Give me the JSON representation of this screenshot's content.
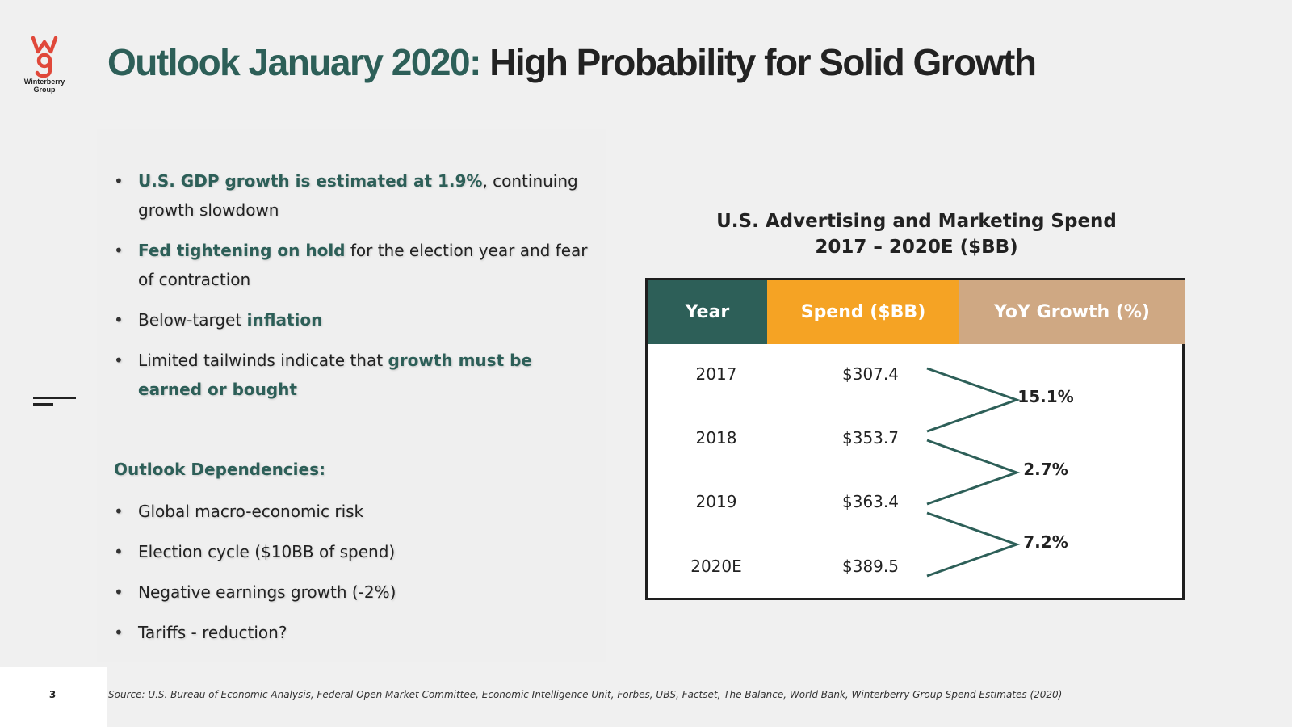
{
  "logo": {
    "mark": "wg",
    "name_line1": "Winterberry",
    "name_line2": "Group"
  },
  "title": {
    "part1": "Outlook January 2020:",
    "part2": "High Probability for Solid Growth"
  },
  "bullets": [
    {
      "bold": "U.S. GDP growth is estimated at 1.9%",
      "rest": ", continuing growth slowdown"
    },
    {
      "bold": "Fed tightening on hold",
      "rest": " for the election year and fear of contraction"
    },
    {
      "pre": "Below-target ",
      "bold": "inflation"
    },
    {
      "pre": "Limited tailwinds indicate that ",
      "bold": "growth must be earned or bought"
    }
  ],
  "dependencies": {
    "heading": "Outlook Dependencies:",
    "items": [
      "Global macro-economic risk",
      "Election cycle ($10BB of spend)",
      "Negative earnings growth (-2%)",
      "Tariffs - reduction?"
    ]
  },
  "chart": {
    "title_line1": "U.S. Advertising and Marketing Spend",
    "title_line2": "2017 – 2020E ($BB)",
    "headers": {
      "year": "Year",
      "spend": "Spend ($BB)",
      "growth": "YoY Growth (%)"
    },
    "colors": {
      "year": "#2d5f58",
      "spend": "#f5a324",
      "growth": "#cfa883",
      "arrow": "#2d5f58"
    }
  },
  "chart_data": {
    "type": "table",
    "title": "U.S. Advertising and Marketing Spend 2017 – 2020E ($BB)",
    "columns": [
      "Year",
      "Spend ($BB)",
      "YoY Growth (%)"
    ],
    "years": [
      "2017",
      "2018",
      "2019",
      "2020E"
    ],
    "spend_labels": [
      "$307.4",
      "$353.7",
      "$363.4",
      "$389.5"
    ],
    "spend_values": [
      307.4,
      353.7,
      363.4,
      389.5
    ],
    "growth_labels": [
      "15.1%",
      "2.7%",
      "7.2%"
    ],
    "growth_values": [
      15.1,
      2.7,
      7.2
    ]
  },
  "footer": {
    "source": "Source: U.S. Bureau of Economic Analysis, Federal Open Market Committee, Economic Intelligence Unit, Forbes, UBS, Factset, The Balance, World Bank, Winterberry Group Spend Estimates (2020)",
    "page_number": "3"
  }
}
